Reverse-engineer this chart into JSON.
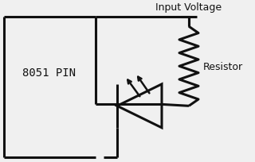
{
  "bg_color": "#f0f0f0",
  "line_color": "#111111",
  "text_color": "#111111",
  "label_8051": "8051 PIN",
  "label_input": "Input Voltage",
  "label_resistor": "Resistor",
  "lw": 2.2
}
